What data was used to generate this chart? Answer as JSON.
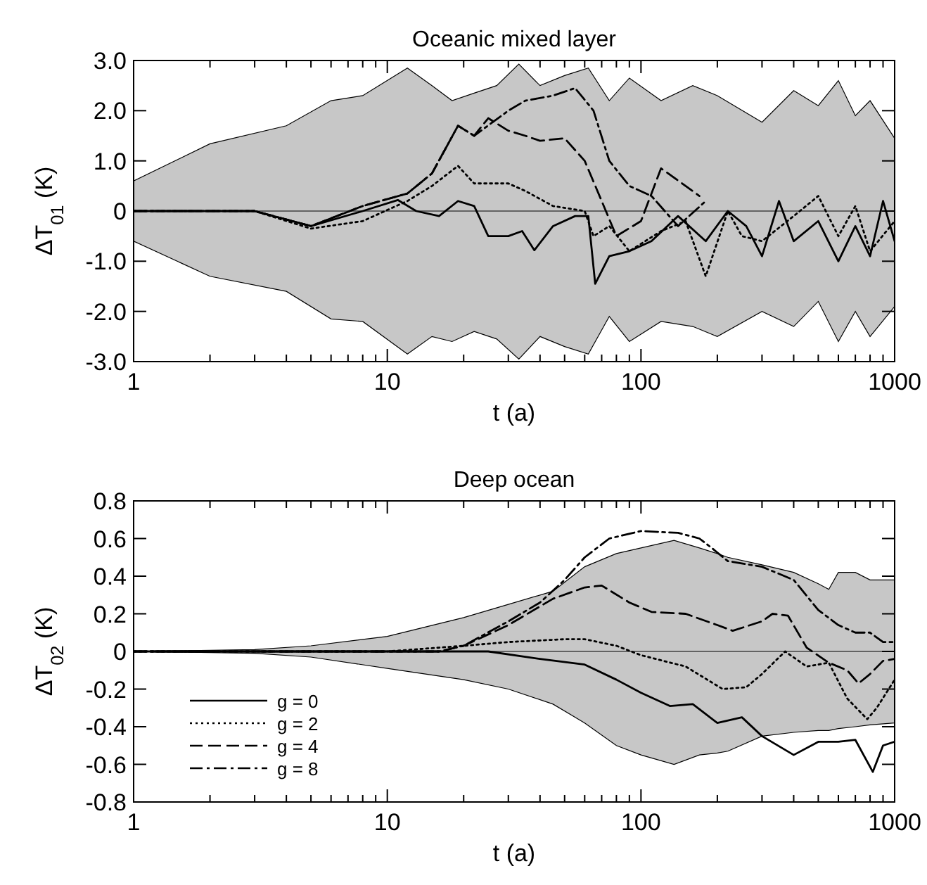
{
  "chart_data": [
    {
      "type": "line",
      "title": "Oceanic mixed layer",
      "xlabel": "t (a)",
      "ylabel": "ΔT$_{01}$ (K)",
      "log": "x",
      "xlim": [
        1,
        1000
      ],
      "xticks": [
        1,
        {
          "value": 2,
          "label": null
        },
        {
          "value": 3,
          "label": null
        },
        {
          "value": 4,
          "label": null
        },
        {
          "value": 5,
          "label": null
        },
        {
          "value": 6,
          "label": null
        },
        {
          "value": 7,
          "label": null
        },
        {
          "value": 8,
          "label": null
        },
        {
          "value": 9,
          "label": null
        },
        10,
        {
          "value": 20,
          "label": null
        },
        {
          "value": 30,
          "label": null
        },
        {
          "value": 40,
          "label": null
        },
        {
          "value": 50,
          "label": null
        },
        {
          "value": 60,
          "label": null
        },
        {
          "value": 70,
          "label": null
        },
        {
          "value": 80,
          "label": null
        },
        {
          "value": 90,
          "label": null
        },
        100,
        {
          "value": 200,
          "label": null
        },
        {
          "value": 300,
          "label": null
        },
        {
          "value": 400,
          "label": null
        },
        {
          "value": 500,
          "label": null
        },
        {
          "value": 600,
          "label": null
        },
        {
          "value": 700,
          "label": null
        },
        {
          "value": 800,
          "label": null
        },
        {
          "value": 900,
          "label": null
        },
        1000
      ],
      "ylim": [
        -3,
        3
      ],
      "yticks": [
        {
          "value": -3,
          "label": "-3.0"
        },
        {
          "value": -2,
          "label": "-2.0"
        },
        {
          "value": -1,
          "label": "-1.0"
        },
        0,
        {
          "value": 1,
          "label": "1.0"
        },
        {
          "value": 2,
          "label": "2.0"
        },
        {
          "value": 3,
          "label": "3.0"
        }
      ],
      "grid": false,
      "legend": false,
      "series": [
        {
          "color": "#000000",
          "line_style": "solid",
          "x": [
            1,
            2,
            4,
            6,
            8,
            12,
            15,
            18,
            22,
            27,
            33,
            40,
            50,
            62,
            75,
            90,
            120,
            160,
            200,
            300,
            400,
            500,
            600,
            700,
            800,
            1000
          ],
          "values": [
            0,
            0,
            0,
            0,
            0,
            0,
            0,
            0,
            0,
            0,
            0,
            0,
            0,
            0,
            0,
            0,
            0,
            0,
            0,
            0,
            0,
            0,
            0,
            0,
            0,
            0
          ],
          "lower": [
            -0.6,
            -1.3,
            -1.6,
            -2.15,
            -2.2,
            -2.85,
            -2.5,
            -2.6,
            -2.4,
            -2.55,
            -2.95,
            -2.5,
            -2.7,
            -2.85,
            -2.1,
            -2.6,
            -2.2,
            -2.3,
            -2.5,
            -2.0,
            -2.3,
            -1.8,
            -2.6,
            -2.0,
            -2.5,
            -1.9
          ],
          "upper": [
            0.6,
            1.34,
            1.7,
            2.2,
            2.3,
            2.85,
            2.5,
            2.2,
            2.35,
            2.5,
            2.93,
            2.5,
            2.7,
            2.85,
            2.2,
            2.65,
            2.2,
            2.5,
            2.3,
            1.77,
            2.4,
            2.1,
            2.6,
            1.9,
            2.2,
            1.45
          ]
        },
        {
          "color": "#000000",
          "line_style": "solid",
          "x": [
            1,
            3,
            5,
            8,
            11,
            13,
            16,
            19,
            22,
            25,
            30,
            34,
            38,
            45,
            55,
            62,
            66,
            75,
            90,
            110,
            140,
            180,
            220,
            260,
            300,
            350,
            400,
            500,
            600,
            700,
            800,
            900,
            1000
          ],
          "values": [
            0,
            0,
            -0.3,
            0,
            0.22,
            0,
            -0.1,
            0.2,
            0.1,
            -0.5,
            -0.5,
            -0.4,
            -0.78,
            -0.3,
            -0.1,
            -0.1,
            -1.45,
            -0.9,
            -0.8,
            -0.6,
            -0.1,
            -0.6,
            0,
            -0.3,
            -0.9,
            0.2,
            -0.6,
            -0.2,
            -1.0,
            -0.3,
            -0.9,
            0.2,
            -0.6
          ]
        },
        {
          "color": "#000000",
          "line_style": "dotted",
          "x": [
            1,
            3,
            5,
            8,
            12,
            15,
            19,
            22,
            30,
            35,
            45,
            60,
            65,
            75,
            90,
            120,
            150,
            180,
            220,
            250,
            300,
            400,
            500,
            600,
            700,
            800,
            1000
          ],
          "values": [
            0,
            0,
            -0.35,
            -0.2,
            0.2,
            0.5,
            0.9,
            0.55,
            0.55,
            0.4,
            0.1,
            0,
            -0.5,
            -0.3,
            -0.8,
            -0.4,
            -0.2,
            -1.3,
            0,
            -0.5,
            -0.6,
            -0.1,
            0.3,
            -0.5,
            0.1,
            -0.8,
            -0.2
          ]
        },
        {
          "color": "#000000",
          "line_style": "dashed",
          "x": [
            1,
            3,
            5,
            8,
            12,
            15,
            19,
            22,
            25,
            30,
            35,
            40,
            50,
            60,
            70,
            80,
            100,
            120,
            150,
            170
          ],
          "values": [
            0,
            0,
            -0.3,
            0.1,
            0.35,
            0.75,
            1.7,
            1.5,
            1.85,
            1.6,
            1.5,
            1.4,
            1.45,
            1.0,
            0.2,
            -0.5,
            -0.2,
            0.85,
            0.5,
            0.3
          ]
        },
        {
          "color": "#000000",
          "line_style": "dashdot",
          "x": [
            1,
            3,
            5,
            8,
            12,
            15,
            19,
            22,
            30,
            35,
            45,
            55,
            65,
            75,
            90,
            110,
            140,
            180
          ],
          "values": [
            0,
            0,
            -0.3,
            0.1,
            0.35,
            0.75,
            1.7,
            1.5,
            2.0,
            2.2,
            2.3,
            2.45,
            2.0,
            1.0,
            0.5,
            0.3,
            -0.3,
            0.2
          ]
        }
      ]
    },
    {
      "type": "line",
      "title": "Deep ocean",
      "xlabel": "t (a)",
      "ylabel": "ΔT$_{02}$ (K)",
      "log": "x",
      "xlim": [
        1,
        1000
      ],
      "xticks": [
        1,
        {
          "value": 2,
          "label": null
        },
        {
          "value": 3,
          "label": null
        },
        {
          "value": 4,
          "label": null
        },
        {
          "value": 5,
          "label": null
        },
        {
          "value": 6,
          "label": null
        },
        {
          "value": 7,
          "label": null
        },
        {
          "value": 8,
          "label": null
        },
        {
          "value": 9,
          "label": null
        },
        10,
        {
          "value": 20,
          "label": null
        },
        {
          "value": 30,
          "label": null
        },
        {
          "value": 40,
          "label": null
        },
        {
          "value": 50,
          "label": null
        },
        {
          "value": 60,
          "label": null
        },
        {
          "value": 70,
          "label": null
        },
        {
          "value": 80,
          "label": null
        },
        {
          "value": 90,
          "label": null
        },
        100,
        {
          "value": 200,
          "label": null
        },
        {
          "value": 300,
          "label": null
        },
        {
          "value": 400,
          "label": null
        },
        {
          "value": 500,
          "label": null
        },
        {
          "value": 600,
          "label": null
        },
        {
          "value": 700,
          "label": null
        },
        {
          "value": 800,
          "label": null
        },
        {
          "value": 900,
          "label": null
        },
        1000
      ],
      "ylim": [
        -0.8,
        0.8
      ],
      "yticks": [
        {
          "value": -0.8,
          "label": "-0.8"
        },
        {
          "value": -0.6,
          "label": "-0.6"
        },
        {
          "value": -0.4,
          "label": "-0.4"
        },
        {
          "value": -0.2,
          "label": "-0.2"
        },
        0,
        {
          "value": 0.2,
          "label": "0.2"
        },
        {
          "value": 0.4,
          "label": "0.4"
        },
        {
          "value": 0.6,
          "label": "0.6"
        },
        {
          "value": 0.8,
          "label": "0.8"
        }
      ],
      "grid": false,
      "legend": "bottom left",
      "series": [
        {
          "color": "#000000",
          "line_style": "solid",
          "x": [
            1,
            3,
            5,
            10,
            20,
            30,
            45,
            60,
            80,
            100,
            135,
            170,
            200,
            220,
            300,
            400,
            500,
            550,
            600,
            700,
            800,
            1000
          ],
          "values": [
            0,
            0,
            0,
            0,
            0,
            0,
            0,
            0,
            0,
            0,
            0,
            0,
            0,
            0,
            0,
            0,
            0,
            0,
            0,
            0,
            0,
            0
          ],
          "lower": [
            0,
            -0.01,
            -0.03,
            -0.09,
            -0.15,
            -0.2,
            -0.28,
            -0.38,
            -0.5,
            -0.55,
            -0.6,
            -0.55,
            -0.54,
            -0.53,
            -0.45,
            -0.43,
            -0.42,
            -0.42,
            -0.41,
            -0.4,
            -0.39,
            -0.38
          ],
          "upper": [
            0,
            0.01,
            0.03,
            0.08,
            0.18,
            0.25,
            0.32,
            0.45,
            0.52,
            0.55,
            0.59,
            0.55,
            0.52,
            0.5,
            0.46,
            0.42,
            0.36,
            0.33,
            0.42,
            0.42,
            0.38,
            0.38
          ]
        },
        {
          "name": "g = 0",
          "color": "#000000",
          "line_style": "solid",
          "x": [
            1,
            25,
            40,
            60,
            80,
            100,
            130,
            160,
            200,
            250,
            300,
            400,
            500,
            600,
            700,
            820,
            900,
            1000
          ],
          "values": [
            0,
            0,
            -0.04,
            -0.07,
            -0.15,
            -0.22,
            -0.29,
            -0.28,
            -0.38,
            -0.35,
            -0.45,
            -0.55,
            -0.48,
            -0.48,
            -0.47,
            -0.64,
            -0.5,
            -0.48
          ]
        },
        {
          "name": "g = 2",
          "color": "#000000",
          "line_style": "dotted",
          "x": [
            1,
            10,
            20,
            30,
            50,
            60,
            80,
            100,
            150,
            210,
            260,
            300,
            370,
            450,
            550,
            650,
            780,
            850,
            1000
          ],
          "values": [
            0,
            0,
            0.03,
            0.05,
            0.065,
            0.065,
            0.03,
            -0.02,
            -0.08,
            -0.2,
            -0.19,
            -0.12,
            0,
            -0.08,
            -0.06,
            -0.25,
            -0.36,
            -0.3,
            -0.15
          ]
        },
        {
          "name": "g = 4",
          "color": "#000000",
          "line_style": "dashed",
          "x": [
            1,
            16,
            20,
            30,
            45,
            60,
            70,
            90,
            110,
            150,
            200,
            230,
            300,
            330,
            380,
            450,
            550,
            650,
            720,
            800,
            900,
            1000
          ],
          "values": [
            0,
            0,
            0.03,
            0.14,
            0.28,
            0.34,
            0.35,
            0.26,
            0.21,
            0.2,
            0.14,
            0.11,
            0.16,
            0.2,
            0.19,
            0.02,
            -0.06,
            -0.1,
            -0.17,
            -0.12,
            -0.05,
            -0.04
          ]
        },
        {
          "name": "g = 8",
          "color": "#000000",
          "line_style": "dashdot",
          "x": [
            1,
            16,
            20,
            30,
            40,
            50,
            60,
            75,
            100,
            140,
            170,
            190,
            220,
            300,
            400,
            500,
            600,
            700,
            800,
            900,
            1000
          ],
          "values": [
            0,
            0,
            0.03,
            0.16,
            0.26,
            0.38,
            0.5,
            0.6,
            0.64,
            0.63,
            0.6,
            0.55,
            0.48,
            0.45,
            0.38,
            0.22,
            0.14,
            0.1,
            0.1,
            0.05,
            0.05
          ]
        }
      ]
    }
  ]
}
